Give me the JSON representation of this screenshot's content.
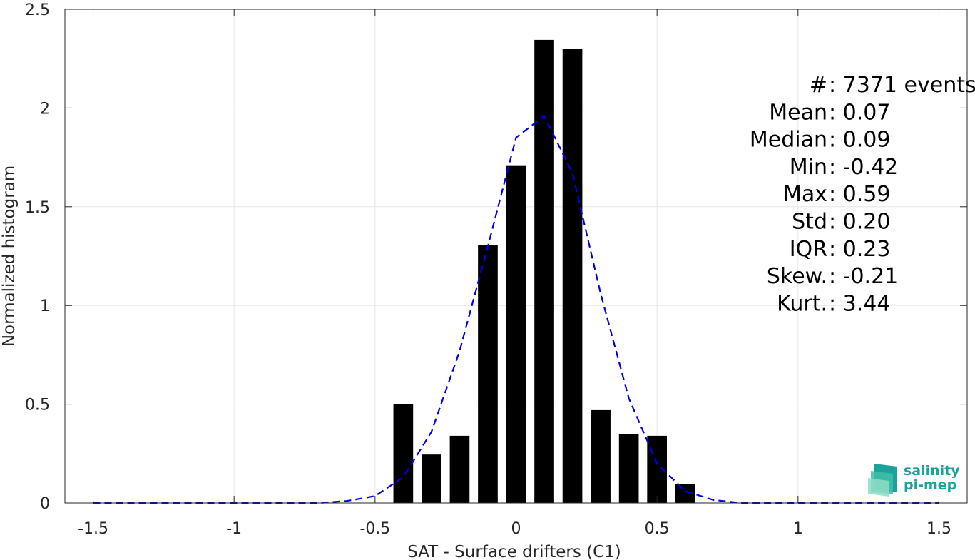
{
  "chart_data": {
    "type": "bar",
    "xlabel": "SAT - Surface drifters (C1)",
    "ylabel": "Normalized histogram",
    "xlim": [
      -1.6,
      1.6
    ],
    "ylim": [
      0,
      2.5
    ],
    "x_ticks": [
      -1.5,
      -1,
      -0.5,
      0,
      0.5,
      1,
      1.5
    ],
    "x_tick_labels": [
      "-1.5",
      "-1",
      "-0.5",
      "0",
      "0.5",
      "1",
      "1.5"
    ],
    "y_ticks": [
      0,
      0.5,
      1,
      1.5,
      2,
      2.5
    ],
    "y_tick_labels": [
      "0",
      "0.5",
      "1",
      "1.5",
      "2",
      "2.5"
    ],
    "grid": true,
    "bar_color": "#000000",
    "bar_width": 0.07,
    "bars": {
      "x": [
        -0.4,
        -0.3,
        -0.2,
        -0.1,
        0.0,
        0.1,
        0.2,
        0.3,
        0.4,
        0.5,
        0.6
      ],
      "values": [
        0.5,
        0.245,
        0.34,
        1.305,
        1.71,
        2.345,
        2.3,
        0.47,
        0.35,
        0.34,
        0.095
      ]
    },
    "fit_curve": {
      "color": "#0000ee",
      "style": "dashed",
      "x": [
        -1.5,
        -1.4,
        -1.3,
        -1.2,
        -1.1,
        -1.0,
        -0.9,
        -0.8,
        -0.7,
        -0.6,
        -0.5,
        -0.4,
        -0.3,
        -0.2,
        -0.1,
        0.0,
        0.1,
        0.2,
        0.3,
        0.4,
        0.5,
        0.6,
        0.7,
        0.8,
        0.9,
        1.0,
        1.1,
        1.2,
        1.3,
        1.4,
        1.5
      ],
      "values": [
        0,
        0,
        0,
        0,
        0,
        0,
        0,
        0,
        0,
        0.01,
        0.035,
        0.13,
        0.36,
        0.77,
        1.3,
        1.85,
        1.96,
        1.67,
        1.06,
        0.53,
        0.2,
        0.06,
        0.015,
        0,
        0,
        0,
        0,
        0,
        0,
        0,
        0
      ]
    },
    "stats": [
      {
        "label": "#  ",
        "value": ": 7371 events"
      },
      {
        "label": "Mean",
        "value": ": 0.07"
      },
      {
        "label": "Median",
        "value": ": 0.09"
      },
      {
        "label": "Min",
        "value": ": -0.42"
      },
      {
        "label": "Max",
        "value": ": 0.59"
      },
      {
        "label": "Std",
        "value": ": 0.20"
      },
      {
        "label": "IQR",
        "value": ": 0.23"
      },
      {
        "label": "Skew.",
        "value": ": -0.21"
      },
      {
        "label": "Kurt.",
        "value": ": 3.44"
      }
    ]
  },
  "logo": {
    "line1": "salinity",
    "line2": "pi-mep",
    "color": "#1aa39a"
  }
}
